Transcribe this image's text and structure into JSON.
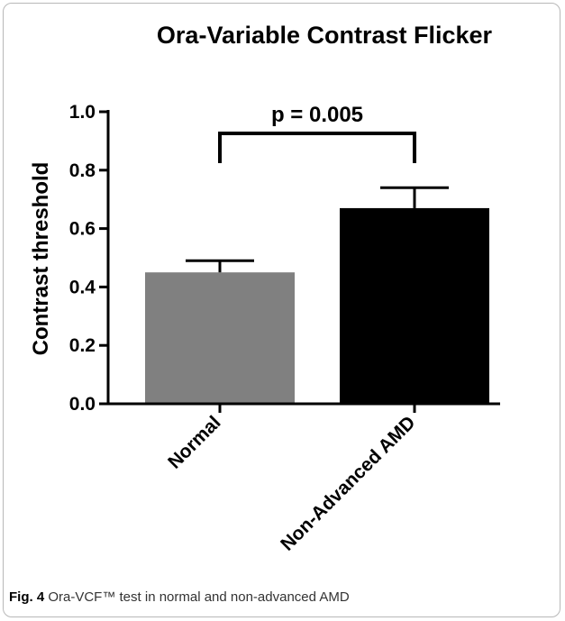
{
  "caption": {
    "label": "Fig. 4",
    "text": "Ora-VCF™ test in normal and non-advanced AMD"
  },
  "chart_data": {
    "type": "bar",
    "title": "Ora-Variable Contrast Flicker",
    "xlabel": "",
    "ylabel": "Contrast threshold",
    "categories": [
      "Normal",
      "Non-Advanced AMD"
    ],
    "values": [
      0.45,
      0.67
    ],
    "error_upper": [
      0.49,
      0.74
    ],
    "bar_colors": [
      "#808080",
      "#000000"
    ],
    "ylim": [
      0.0,
      1.0
    ],
    "yticks": [
      "0.0",
      "0.2",
      "0.4",
      "0.6",
      "0.8",
      "1.0"
    ],
    "annotation": "p = 0.005",
    "grid": false,
    "legend": "none"
  }
}
